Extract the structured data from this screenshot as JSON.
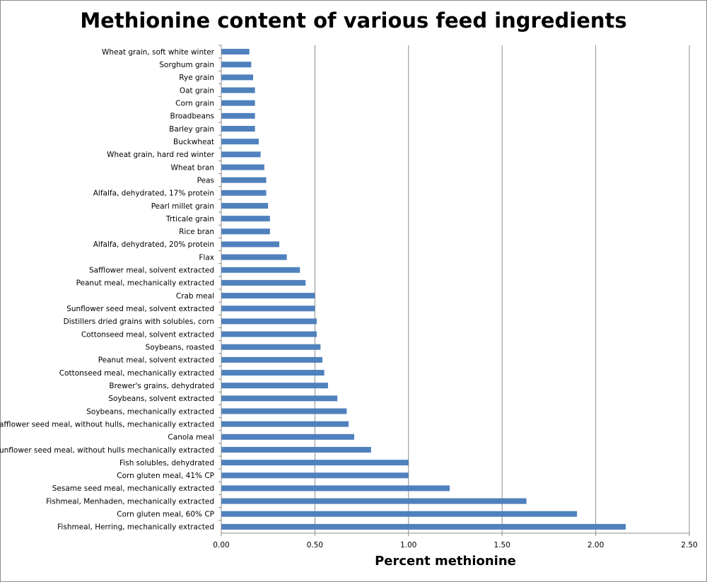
{
  "chart_data": {
    "type": "bar",
    "orientation": "horizontal",
    "title": "Methionine content of various feed ingredients",
    "xlabel": "Percent methionine",
    "ylabel": "",
    "xlim": [
      0,
      2.5
    ],
    "xticks": [
      "0.00",
      "0.50",
      "1.00",
      "1.50",
      "2.00",
      "2.50"
    ],
    "grid": "vertical",
    "legend": "none",
    "bar_color": "#4f81bd",
    "categories": [
      "Wheat grain, soft white winter",
      "Sorghum grain",
      "Rye grain",
      "Oat grain",
      "Corn grain",
      "Broadbeans",
      "Barley grain",
      "Buckwheat",
      "Wheat grain, hard red winter",
      "Wheat bran",
      "Peas",
      "Alfalfa, dehydrated, 17% protein",
      "Pearl millet grain",
      "Trticale grain",
      "Rice bran",
      "Alfalfa, dehydrated, 20% protein",
      "Flax",
      "Safflower meal, solvent extracted",
      "Peanut meal, mechanically extracted",
      "Crab meal",
      "Sunflower seed meal, solvent extracted",
      "Distillers dried grains with solubles, corn",
      "Cottonseed meal, solvent extracted",
      "Soybeans, roasted",
      "Peanut meal, solvent extracted",
      "Cottonseed meal, mechanically extracted",
      "Brewer's grains, dehydrated",
      "Soybeans, solvent extracted",
      "Soybeans, mechanically extracted",
      "Safflower seed meal, without hulls,  mechanically extracted",
      "Canola meal",
      "Sunflower seed meal, without hulls mechanically extracted",
      "Fish solubles, dehydrated",
      "Corn gluten meal, 41% CP",
      "Sesame seed meal, mechanically extracted",
      "Fishmeal, Menhaden, mechanically extracted",
      "Corn gluten meal, 60% CP",
      "Fishmeal, Herring, mechanically extracted"
    ],
    "values": [
      0.15,
      0.16,
      0.17,
      0.18,
      0.18,
      0.18,
      0.18,
      0.2,
      0.21,
      0.23,
      0.24,
      0.24,
      0.25,
      0.26,
      0.26,
      0.31,
      0.35,
      0.42,
      0.45,
      0.5,
      0.5,
      0.51,
      0.51,
      0.53,
      0.54,
      0.55,
      0.57,
      0.62,
      0.67,
      0.68,
      0.71,
      0.8,
      1.0,
      1.0,
      1.22,
      1.63,
      1.9,
      2.16
    ]
  }
}
